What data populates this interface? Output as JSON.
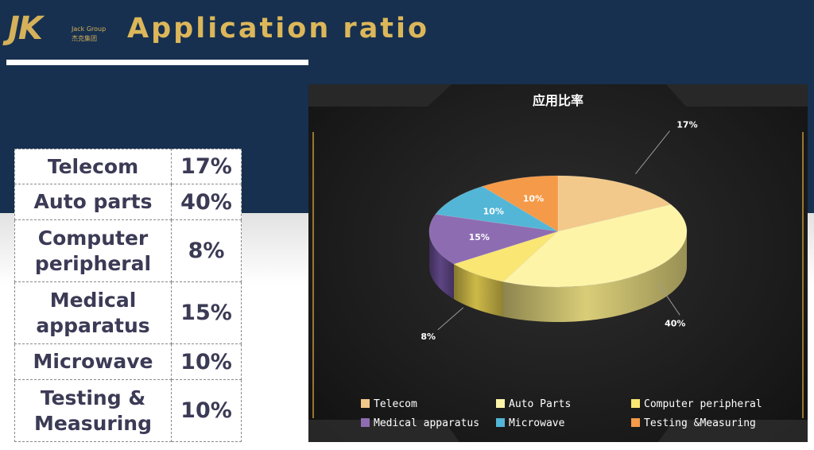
{
  "header": {
    "logo_text": "JK",
    "logo_subtext": "Jack Group",
    "logo_cn_text": "杰克集团",
    "title": "Application ratio"
  },
  "table": {
    "rows": [
      {
        "name_lines": [
          "Telecom"
        ],
        "pct": "17%"
      },
      {
        "name_lines": [
          "Auto parts"
        ],
        "pct": "40%"
      },
      {
        "name_lines": [
          "Computer",
          "peripheral"
        ],
        "pct": "8%"
      },
      {
        "name_lines": [
          "Medical",
          "apparatus"
        ],
        "pct": "15%"
      },
      {
        "name_lines": [
          "Microwave"
        ],
        "pct": "10%"
      },
      {
        "name_lines": [
          "Testing &",
          "Measuring"
        ],
        "pct": "10%"
      }
    ]
  },
  "chart_data": {
    "type": "pie",
    "title": "应用比率",
    "categories": [
      "Telecom",
      "Auto Parts",
      "Computer peripheral",
      "Medical apparatus",
      "Microwave",
      "Testing &Measuring"
    ],
    "values": [
      17,
      40,
      8,
      15,
      10,
      10
    ],
    "labels": [
      "17%",
      "40%",
      "8%",
      "15%",
      "10%",
      "10%"
    ],
    "colors": [
      "#f2c98a",
      "#fdf4a8",
      "#fae673",
      "#8e6cb2",
      "#53b6d6",
      "#f59a48"
    ],
    "side_colors": [
      "#caa062",
      "#d9cd78",
      "#cdb948",
      "#5e4584",
      "#2e82a2",
      "#c86a22"
    ],
    "style": "3d",
    "legend_position": "bottom"
  }
}
